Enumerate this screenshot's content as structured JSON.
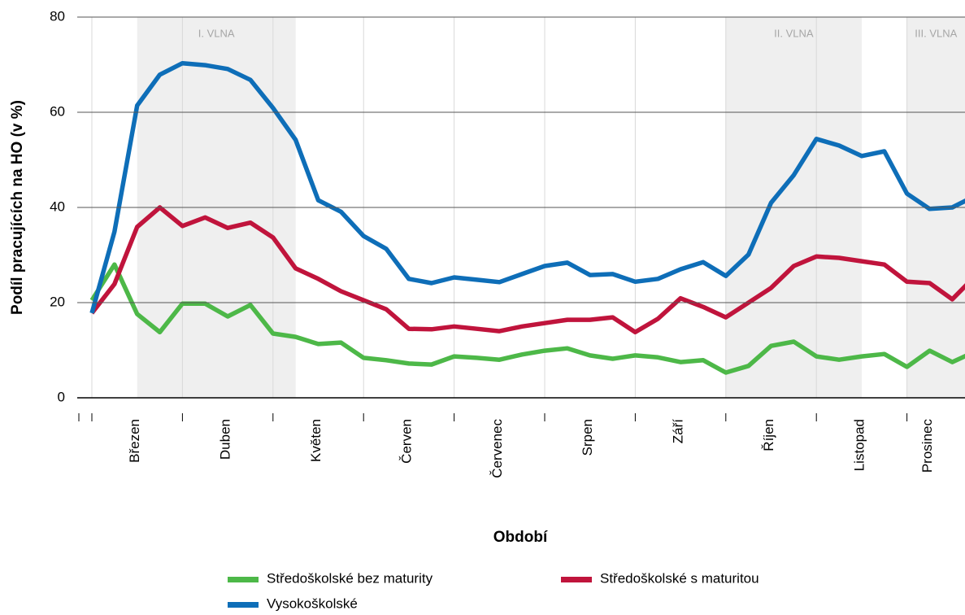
{
  "chart_data": {
    "type": "line",
    "ylabel": "Podíl pracujících na HO (v %)",
    "xlabel": "Období",
    "categories": [
      null,
      null,
      "Březen",
      null,
      null,
      null,
      "Duben",
      null,
      null,
      null,
      "Květen",
      null,
      null,
      null,
      "Červen",
      null,
      null,
      null,
      "Červenec",
      null,
      null,
      null,
      "Srpen",
      null,
      null,
      null,
      "Září",
      null,
      null,
      null,
      "Říjen",
      null,
      null,
      null,
      "Listopad",
      null,
      null,
      "Prosinec",
      null,
      null
    ],
    "series": [
      {
        "name": "Středoškolské bez maturity",
        "color": "#4db848",
        "values": [
          20.5,
          28.0,
          17.6,
          13.8,
          19.8,
          19.8,
          17.1,
          19.5,
          13.5,
          12.8,
          11.3,
          11.6,
          8.4,
          7.9,
          7.2,
          7.0,
          8.7,
          8.4,
          8.0,
          9.1,
          9.9,
          10.4,
          8.9,
          8.2,
          8.9,
          8.5,
          7.5,
          7.9,
          5.3,
          6.7,
          10.9,
          11.8,
          8.7,
          8.0,
          8.7,
          9.2,
          6.5,
          9.9,
          7.5,
          9.7
        ]
      },
      {
        "name": "Středoškolské s maturitou",
        "color": "#c0143c",
        "values": [
          17.8,
          23.9,
          35.9,
          40.0,
          36.1,
          37.9,
          35.7,
          36.8,
          33.7,
          27.2,
          25.0,
          22.4,
          20.5,
          18.6,
          14.5,
          14.4,
          15.0,
          14.5,
          14.0,
          15.0,
          15.7,
          16.4,
          16.4,
          16.9,
          13.8,
          16.6,
          20.9,
          19.1,
          16.9,
          20.0,
          23.1,
          27.7,
          29.7,
          29.4,
          28.7,
          28.0,
          24.4,
          24.1,
          20.7,
          25.5
        ]
      },
      {
        "name": "Vysokoškolské",
        "color": "#0e6eb8",
        "values": [
          17.8,
          34.9,
          61.4,
          67.9,
          70.3,
          69.9,
          69.1,
          66.8,
          60.9,
          54.2,
          41.5,
          39.1,
          34.0,
          31.3,
          25.0,
          24.1,
          25.3,
          24.8,
          24.3,
          26.0,
          27.7,
          28.4,
          25.8,
          26.0,
          24.4,
          25.0,
          27.0,
          28.5,
          25.6,
          30.1,
          41.0,
          46.8,
          54.4,
          53.0,
          50.8,
          51.8,
          42.9,
          39.7,
          40.0,
          42.4
        ]
      }
    ],
    "annotations": [
      {
        "label": "I. VLNA",
        "start": 2,
        "end": 9
      },
      {
        "label": "II. VLNA",
        "start": 28,
        "end": 34
      },
      {
        "label": "III. VLNA",
        "start": 36,
        "end": 39
      }
    ],
    "ylim": [
      0,
      80
    ],
    "yticks": [
      0,
      20,
      40,
      60,
      80
    ],
    "grid": true
  }
}
